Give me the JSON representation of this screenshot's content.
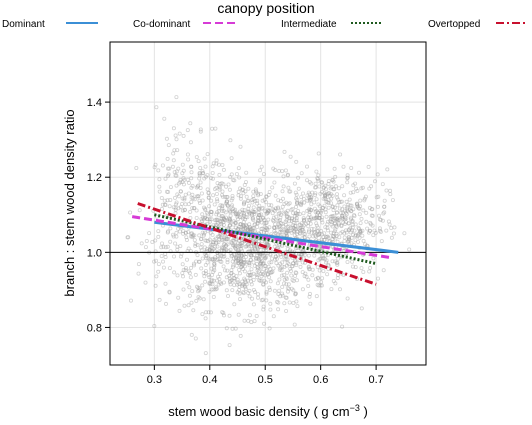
{
  "chart_data": {
    "type": "scatter",
    "title": "",
    "xlabel": "stem wood basic density ( g cm",
    "xlabel_sup": "−3",
    "xlabel_end": " )",
    "ylabel": "branch : stem wood density ratio",
    "xlim": [
      0.22,
      0.79
    ],
    "ylim": [
      0.7,
      1.56
    ],
    "x_ticks": [
      0.3,
      0.4,
      0.5,
      0.6,
      0.7
    ],
    "x_tick_labels": [
      "0.3",
      "0.4",
      "0.5",
      "0.6",
      "0.7"
    ],
    "y_ticks": [
      0.8,
      1.0,
      1.2,
      1.4
    ],
    "y_tick_labels": [
      "0.8",
      "1.0",
      "1.2",
      "1.4"
    ],
    "grid": true,
    "reference_line_y": 1.0,
    "legend": {
      "title": "canopy position",
      "placement": "top",
      "entries": [
        {
          "name": "Dominant",
          "color": "#3b8fd6",
          "dash": "solid"
        },
        {
          "name": "Co-dominant",
          "color": "#d63bd6",
          "dash": "dashed"
        },
        {
          "name": "Intermediate",
          "color": "#1f5a1f",
          "dash": "dotted"
        },
        {
          "name": "Overtopped",
          "color": "#c8102e",
          "dash": "dashdot"
        }
      ]
    },
    "scatter_points": {
      "color": "#9e9e9e",
      "clusters": [
        {
          "x_mean": 0.47,
          "x_sd": 0.075,
          "y_mean": 1.02,
          "y_sd": 0.085,
          "n": 1300
        },
        {
          "x_mean": 0.62,
          "x_sd": 0.05,
          "y_mean": 1.08,
          "y_sd": 0.07,
          "n": 500
        },
        {
          "x_mean": 0.36,
          "x_sd": 0.04,
          "y_mean": 1.19,
          "y_sd": 0.09,
          "n": 160
        }
      ]
    },
    "series": [
      {
        "name": "Dominant",
        "x": [
          0.3,
          0.74
        ],
        "y": [
          1.08,
          1.0
        ]
      },
      {
        "name": "Co-dominant",
        "x": [
          0.26,
          0.73
        ],
        "y": [
          1.095,
          0.985
        ]
      },
      {
        "name": "Intermediate",
        "x": [
          0.3,
          0.7
        ],
        "y": [
          1.1,
          0.97
        ]
      },
      {
        "name": "Overtopped",
        "x": [
          0.27,
          0.7
        ],
        "y": [
          1.13,
          0.915
        ]
      }
    ]
  }
}
